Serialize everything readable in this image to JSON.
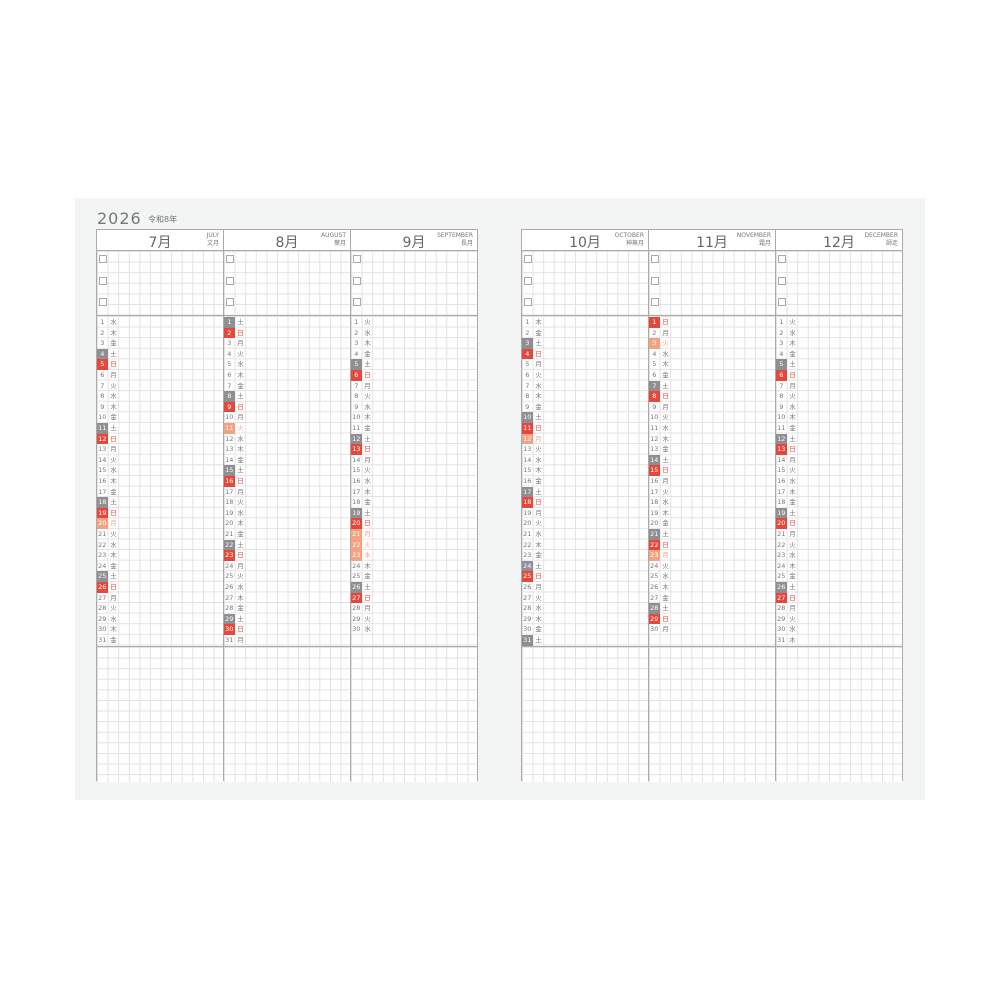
{
  "header": {
    "year": "2026",
    "era": "令和8年"
  },
  "weekdays": [
    "日",
    "月",
    "火",
    "水",
    "木",
    "金",
    "土"
  ],
  "colors": {
    "saturday": "#8e8e93",
    "sunday": "#e5483a",
    "holiday": "#f2a482"
  },
  "pages": [
    {
      "months": [
        {
          "month": 7,
          "label": "7月",
          "english": "JULY",
          "traditional": "文月",
          "days": 31,
          "holidays": [
            20
          ]
        },
        {
          "month": 8,
          "label": "8月",
          "english": "AUGUST",
          "traditional": "葉月",
          "days": 31,
          "holidays": [
            11
          ]
        },
        {
          "month": 9,
          "label": "9月",
          "english": "SEPTEMBER",
          "traditional": "長月",
          "days": 30,
          "holidays": [
            21,
            22,
            23
          ]
        }
      ]
    },
    {
      "months": [
        {
          "month": 10,
          "label": "10月",
          "english": "OCTOBER",
          "traditional": "神無月",
          "days": 31,
          "holidays": [
            12
          ]
        },
        {
          "month": 11,
          "label": "11月",
          "english": "NOVEMBER",
          "traditional": "霜月",
          "days": 30,
          "holidays": [
            3,
            23
          ]
        },
        {
          "month": 12,
          "label": "12月",
          "english": "DECEMBER",
          "traditional": "師走",
          "days": 31,
          "holidays": []
        }
      ]
    }
  ]
}
